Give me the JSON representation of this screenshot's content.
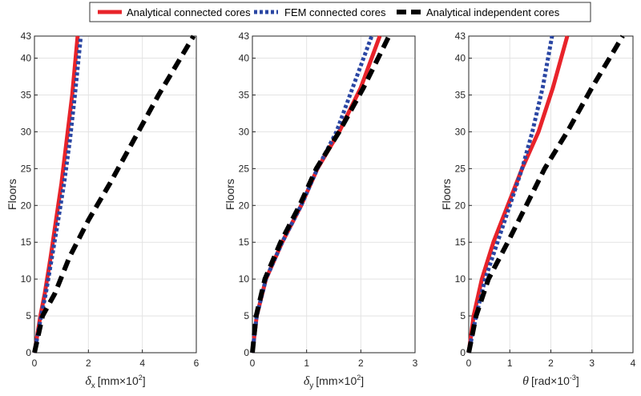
{
  "legend": {
    "items": [
      {
        "label": "Analytical connected cores",
        "color": "#e8232a",
        "style": "solid"
      },
      {
        "label": "FEM connected cores",
        "color": "#2a46a3",
        "style": "dotted"
      },
      {
        "label": "Analytical independent cores",
        "color": "#000000",
        "style": "dashed"
      }
    ]
  },
  "chart_data": [
    {
      "type": "line",
      "ylabel": "Floors",
      "xlabel_symbol": "δ",
      "xlabel_sub": "x",
      "xlabel_unit": "[mm×10",
      "xlabel_exp": "2",
      "xlabel_close": "]",
      "xlim": [
        0,
        6
      ],
      "ylim": [
        0,
        43
      ],
      "xticks": [
        "0",
        "2",
        "4",
        "6"
      ],
      "yticks": [
        "0",
        "5",
        "10",
        "15",
        "20",
        "25",
        "30",
        "35",
        "40",
        "43"
      ],
      "grid": true,
      "series": [
        {
          "name": "Analytical connected cores",
          "x": [
            0,
            0.22,
            0.38,
            0.6,
            0.8,
            1.0,
            1.2,
            1.4,
            1.6
          ],
          "y": [
            0,
            5,
            8,
            13,
            18,
            23,
            29,
            35,
            43
          ]
        },
        {
          "name": "FEM connected cores",
          "x": [
            0,
            0.25,
            0.42,
            0.65,
            0.88,
            1.1,
            1.32,
            1.5,
            1.72
          ],
          "y": [
            0,
            5,
            8,
            13,
            18,
            23,
            29,
            35,
            43
          ]
        },
        {
          "name": "Analytical independent cores",
          "x": [
            0,
            0.3,
            0.75,
            1.3,
            2.0,
            2.8,
            3.7,
            4.6,
            5.9
          ],
          "y": [
            0,
            5,
            8,
            13,
            18,
            23,
            29,
            35,
            43
          ]
        }
      ]
    },
    {
      "type": "line",
      "ylabel": "Floors",
      "xlabel_symbol": "δ",
      "xlabel_sub": "y",
      "xlabel_unit": "[mm×10",
      "xlabel_exp": "2",
      "xlabel_close": "]",
      "xlim": [
        0,
        3
      ],
      "ylim": [
        0,
        43
      ],
      "xticks": [
        "0",
        "1",
        "2",
        "3"
      ],
      "yticks": [
        "0",
        "5",
        "10",
        "15",
        "20",
        "25",
        "30",
        "35",
        "40",
        "43"
      ],
      "grid": true,
      "series": [
        {
          "name": "Analytical connected cores",
          "x": [
            0,
            0.08,
            0.25,
            0.55,
            0.9,
            1.2,
            1.6,
            2.0,
            2.35
          ],
          "y": [
            0,
            5,
            10,
            15,
            20,
            25,
            30,
            36,
            43
          ]
        },
        {
          "name": "FEM connected cores",
          "x": [
            0,
            0.08,
            0.25,
            0.55,
            0.9,
            1.2,
            1.55,
            1.85,
            2.2
          ],
          "y": [
            0,
            5,
            10,
            15,
            20,
            25,
            30,
            36,
            43
          ]
        },
        {
          "name": "Analytical independent cores",
          "x": [
            0,
            0.07,
            0.23,
            0.52,
            0.87,
            1.18,
            1.6,
            2.05,
            2.52
          ],
          "y": [
            0,
            5,
            10,
            15,
            20,
            25,
            30,
            36,
            43
          ]
        }
      ]
    },
    {
      "type": "line",
      "ylabel": "Floors",
      "xlabel_symbol": "θ",
      "xlabel_sub": "",
      "xlabel_unit": "[rad×10",
      "xlabel_exp": "-3",
      "xlabel_close": "]",
      "xlim": [
        0,
        4
      ],
      "ylim": [
        0,
        43
      ],
      "xticks": [
        "0",
        "1",
        "2",
        "3",
        "4"
      ],
      "yticks": [
        "0",
        "5",
        "10",
        "15",
        "20",
        "25",
        "30",
        "35",
        "40",
        "43"
      ],
      "grid": true,
      "series": [
        {
          "name": "Analytical connected cores",
          "x": [
            0,
            0.12,
            0.32,
            0.6,
            0.95,
            1.3,
            1.7,
            2.05,
            2.4
          ],
          "y": [
            0,
            5,
            10,
            15,
            20,
            25,
            30,
            36,
            43
          ]
        },
        {
          "name": "FEM connected cores",
          "x": [
            0,
            0.18,
            0.4,
            0.7,
            1.0,
            1.3,
            1.55,
            1.8,
            2.03
          ],
          "y": [
            0,
            5,
            10,
            15,
            20,
            25,
            30,
            36,
            43
          ]
        },
        {
          "name": "Analytical independent cores",
          "x": [
            0,
            0.18,
            0.48,
            0.95,
            1.4,
            1.85,
            2.4,
            3.0,
            3.75
          ],
          "y": [
            0,
            5,
            10,
            15,
            20,
            25,
            30,
            36,
            43
          ]
        }
      ]
    }
  ]
}
